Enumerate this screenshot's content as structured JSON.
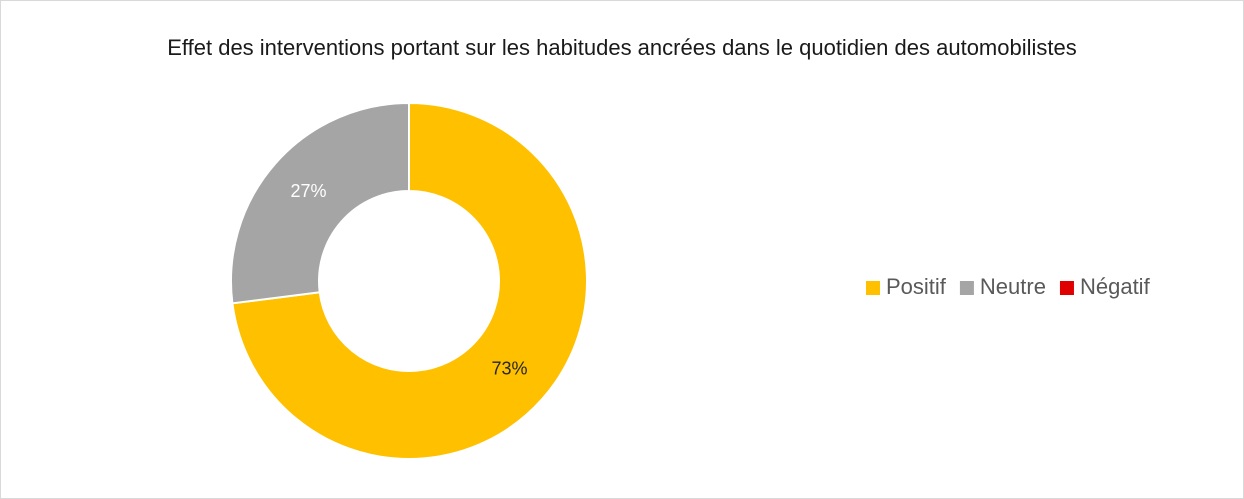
{
  "chart_data": {
    "type": "donut",
    "title": "Effet des interventions portant sur les habitudes ancrées dans le quotidien des automobilistes",
    "categories": [
      "Positif",
      "Neutre",
      "Négatif"
    ],
    "values": [
      73,
      27,
      0
    ],
    "value_labels": [
      "73%",
      "27%",
      null
    ],
    "colors": [
      "#ffc000",
      "#a5a5a5",
      "#e00000"
    ],
    "legend": "right"
  }
}
